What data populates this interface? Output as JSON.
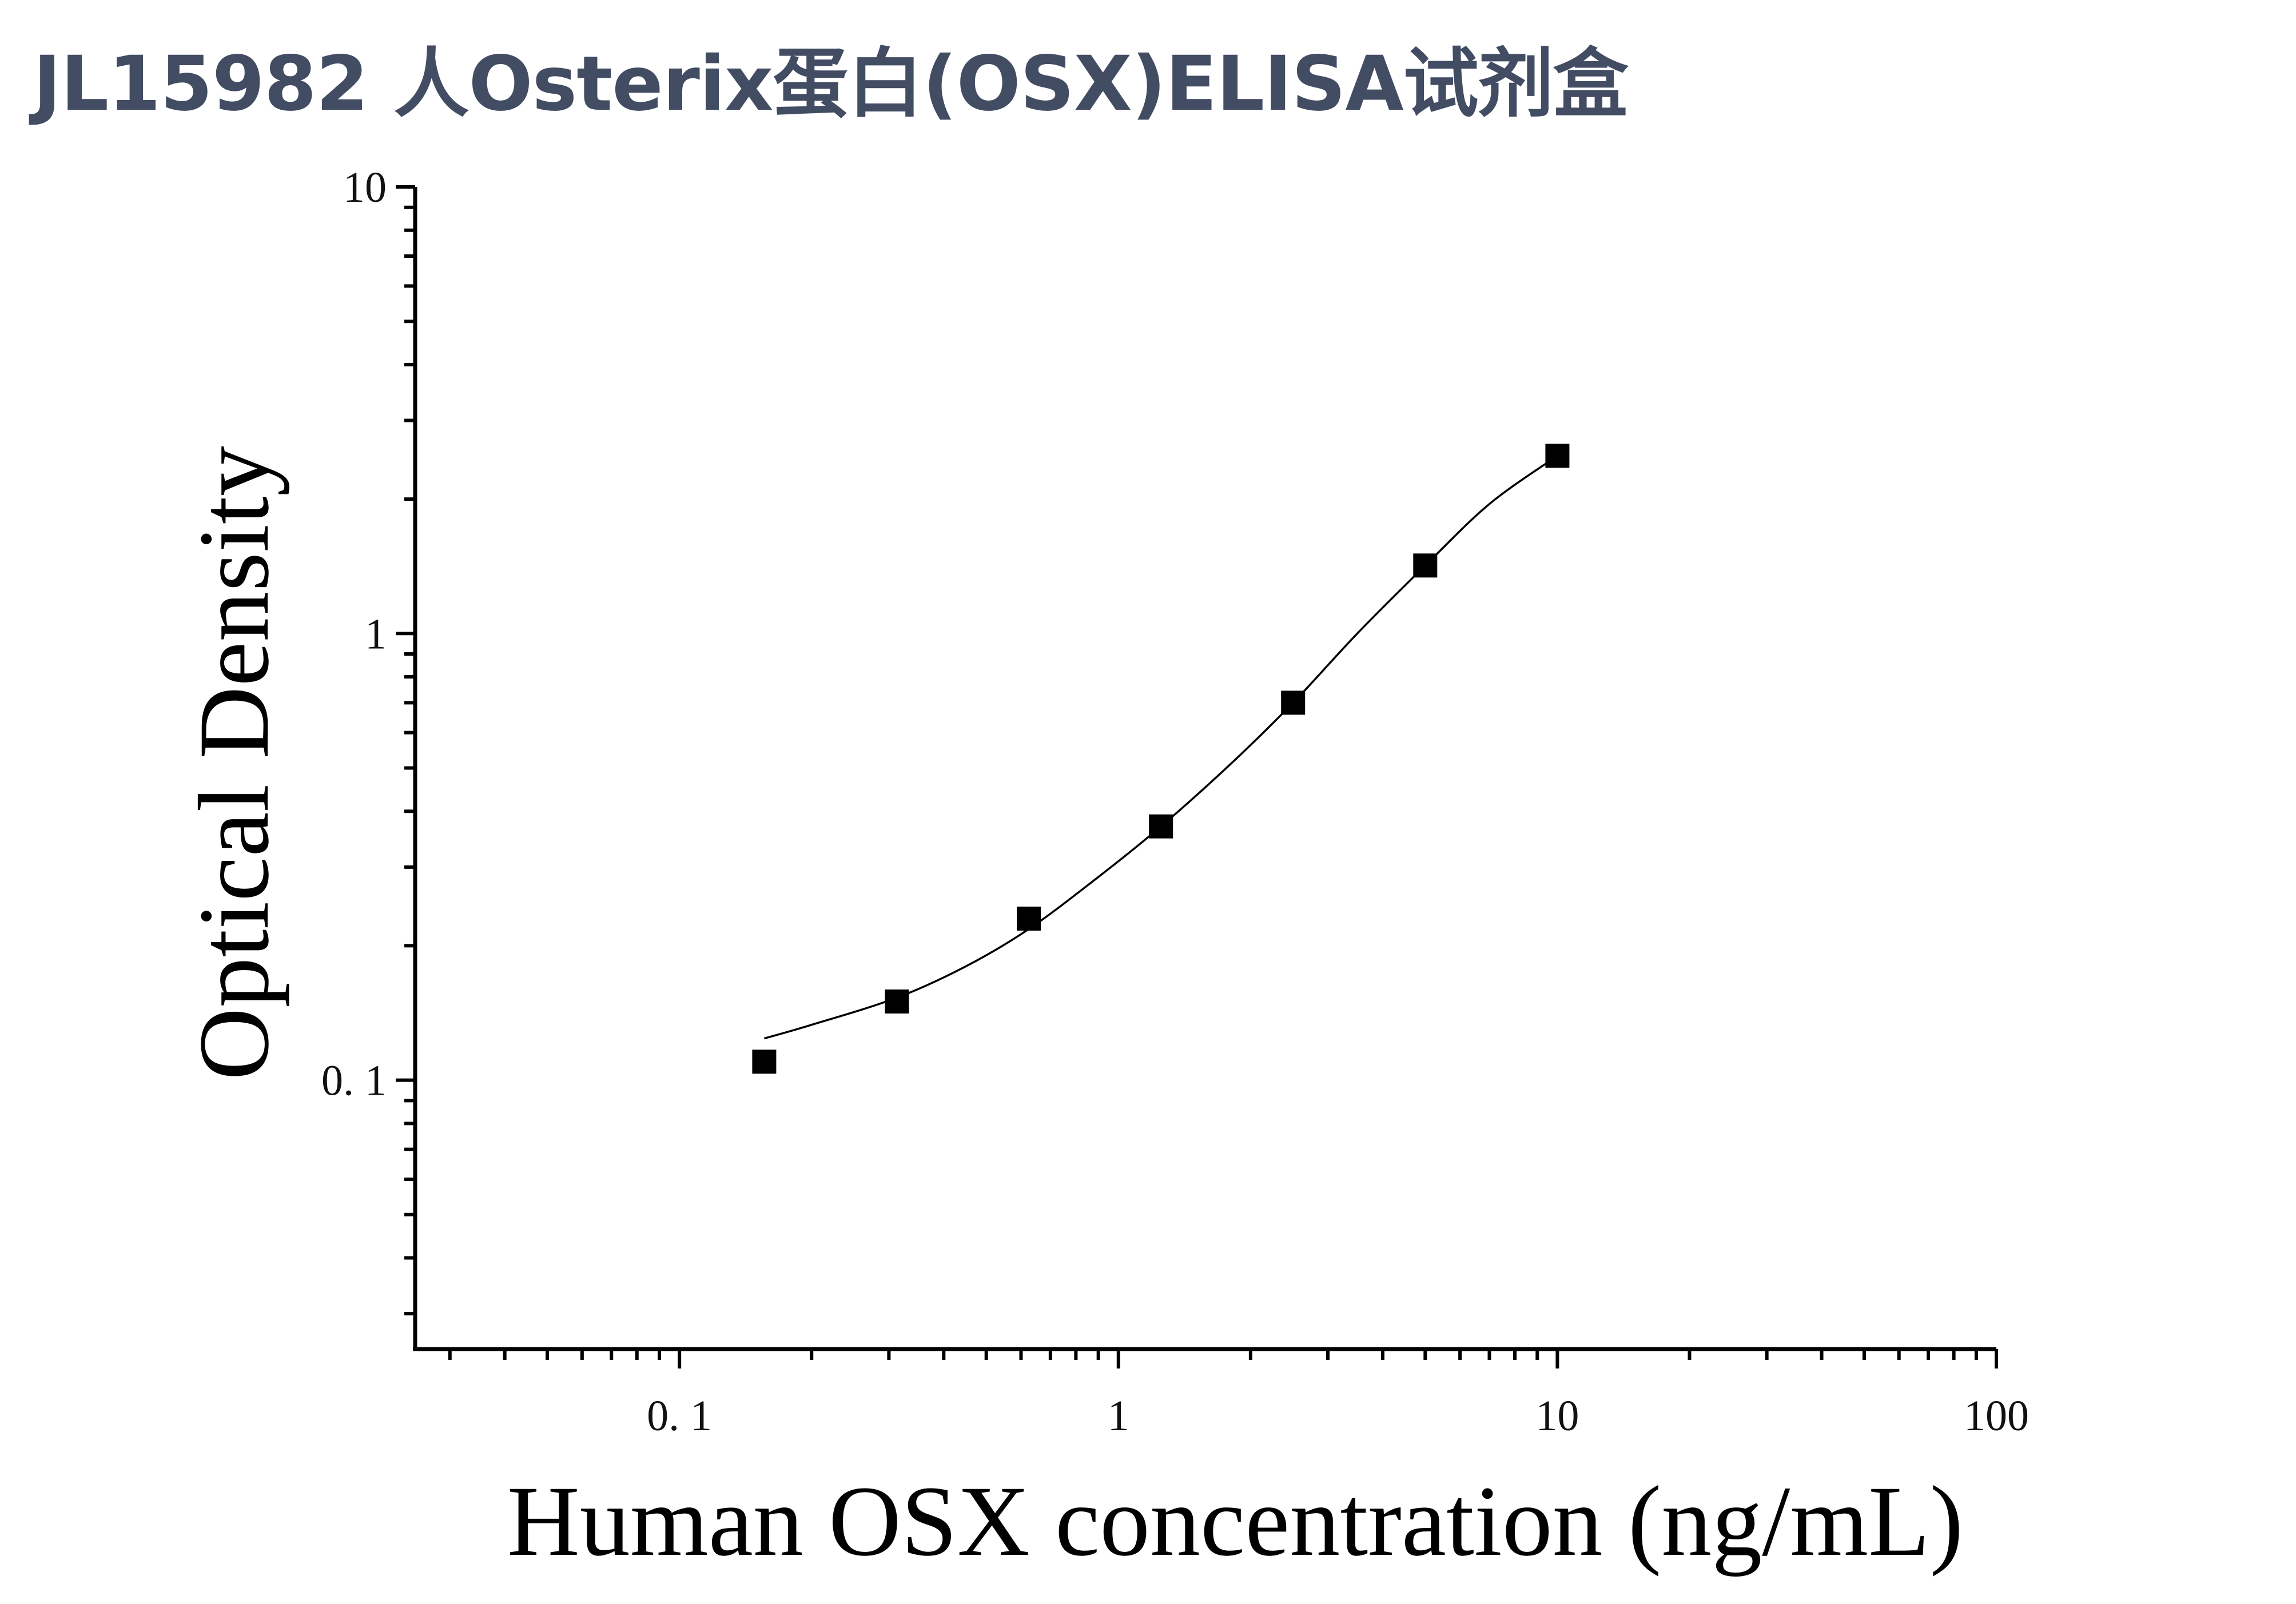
{
  "title": "JL15982 人Osterix蛋白(OSX)ELISA试剂盒",
  "colors": {
    "title": "#424c63",
    "axis": "#000000",
    "marker": "#000000"
  },
  "chart_data": {
    "type": "scatter",
    "xlabel": "Human OSX concentration (ng/mL)",
    "ylabel": "Optical Density",
    "xscale": "log",
    "yscale": "log",
    "xlim": [
      0.025,
      100
    ],
    "ylim": [
      0.025,
      10
    ],
    "x_ticks": [
      "0. 1",
      "1",
      "10",
      "100"
    ],
    "y_ticks": [
      "0. 1",
      "1",
      "10"
    ],
    "grid": false,
    "series": [
      {
        "marker": "square",
        "points": [
          {
            "x": 0.156,
            "y": 0.11
          },
          {
            "x": 0.313,
            "y": 0.15
          },
          {
            "x": 0.625,
            "y": 0.23
          },
          {
            "x": 1.25,
            "y": 0.37
          },
          {
            "x": 2.5,
            "y": 0.7
          },
          {
            "x": 5,
            "y": 1.42
          },
          {
            "x": 10,
            "y": 2.5
          }
        ]
      }
    ],
    "fit_curve": {
      "type": "line",
      "points": [
        {
          "x": 0.156,
          "y": 0.124
        },
        {
          "x": 0.2,
          "y": 0.133
        },
        {
          "x": 0.313,
          "y": 0.153
        },
        {
          "x": 0.45,
          "y": 0.18
        },
        {
          "x": 0.625,
          "y": 0.218
        },
        {
          "x": 0.9,
          "y": 0.285
        },
        {
          "x": 1.25,
          "y": 0.37
        },
        {
          "x": 1.8,
          "y": 0.51
        },
        {
          "x": 2.5,
          "y": 0.7
        },
        {
          "x": 3.5,
          "y": 1.0
        },
        {
          "x": 5,
          "y": 1.42
        },
        {
          "x": 7,
          "y": 1.95
        },
        {
          "x": 10,
          "y": 2.5
        }
      ]
    }
  }
}
